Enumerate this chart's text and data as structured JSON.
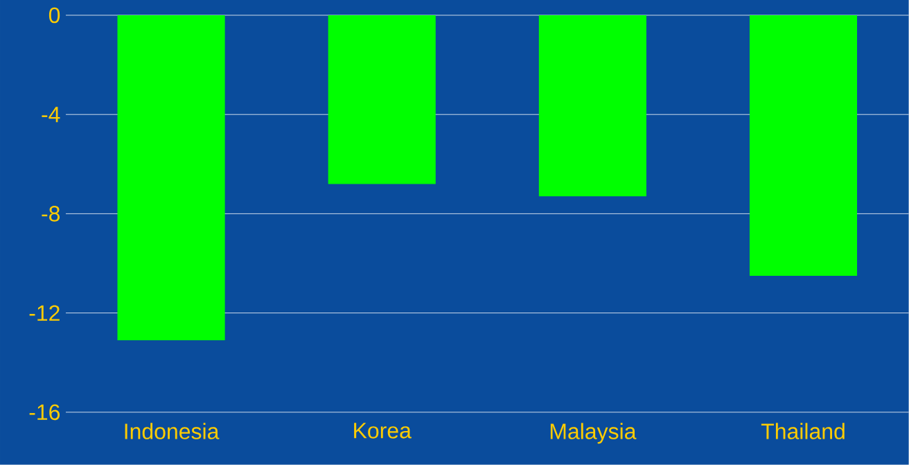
{
  "chart_data": {
    "type": "bar",
    "categories": [
      "Indonesia",
      "Korea",
      "Malaysia",
      "Thailand"
    ],
    "values": [
      -13.1,
      -6.8,
      -7.3,
      -10.5
    ],
    "color": "#00ff00",
    "ylim": [
      -16,
      0
    ],
    "yticks": [
      -16,
      -12,
      -8,
      -4,
      0
    ],
    "grid": "y"
  }
}
